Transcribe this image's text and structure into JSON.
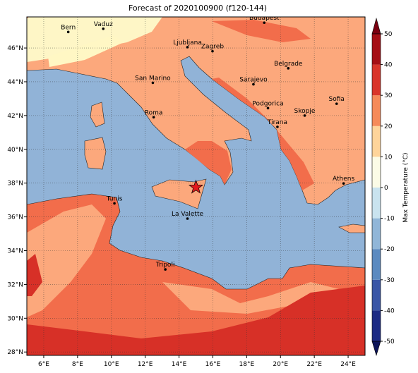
{
  "title": "Forecast of 2020100900 (f120-144)",
  "map": {
    "xlim": [
      5,
      25
    ],
    "ylim": [
      27.8,
      47.84
    ],
    "xticks": [
      {
        "value": 6,
        "label": "6°E"
      },
      {
        "value": 8,
        "label": "8°E"
      },
      {
        "value": 10,
        "label": "10°E"
      },
      {
        "value": 12,
        "label": "12°E"
      },
      {
        "value": 14,
        "label": "14°E"
      },
      {
        "value": 16,
        "label": "16°E"
      },
      {
        "value": 18,
        "label": "18°E"
      },
      {
        "value": 20,
        "label": "20°E"
      },
      {
        "value": 22,
        "label": "22°E"
      },
      {
        "value": 24,
        "label": "24°E"
      }
    ],
    "yticks": [
      {
        "value": 28,
        "label": "28°N"
      },
      {
        "value": 30,
        "label": "30°N"
      },
      {
        "value": 32,
        "label": "32°N"
      },
      {
        "value": 34,
        "label": "34°N"
      },
      {
        "value": 36,
        "label": "36°N"
      },
      {
        "value": 38,
        "label": "38°N"
      },
      {
        "value": 40,
        "label": "40°N"
      },
      {
        "value": 42,
        "label": "42°N"
      },
      {
        "value": 44,
        "label": "44°N"
      },
      {
        "value": 46,
        "label": "46°N"
      }
    ],
    "grid": true,
    "cities": [
      {
        "name": "Bern",
        "lon": 7.45,
        "lat": 46.95
      },
      {
        "name": "Vaduz",
        "lon": 9.52,
        "lat": 47.14
      },
      {
        "name": "Budapest",
        "lon": 19.04,
        "lat": 47.5
      },
      {
        "name": "Ljubljana",
        "lon": 14.5,
        "lat": 46.05
      },
      {
        "name": "Zagreb",
        "lon": 15.98,
        "lat": 45.81
      },
      {
        "name": "San Marino",
        "lon": 12.45,
        "lat": 43.94
      },
      {
        "name": "Belgrade",
        "lon": 20.46,
        "lat": 44.8
      },
      {
        "name": "Sarajevo",
        "lon": 18.4,
        "lat": 43.85
      },
      {
        "name": "Roma",
        "lon": 12.5,
        "lat": 41.9
      },
      {
        "name": "Podgorica",
        "lon": 19.26,
        "lat": 42.44
      },
      {
        "name": "Skopje",
        "lon": 21.43,
        "lat": 42.0
      },
      {
        "name": "Sofia",
        "lon": 23.32,
        "lat": 42.7
      },
      {
        "name": "Tirana",
        "lon": 19.82,
        "lat": 41.33
      },
      {
        "name": "Athens",
        "lon": 23.73,
        "lat": 37.98
      },
      {
        "name": "Tunis",
        "lon": 10.18,
        "lat": 36.8
      },
      {
        "name": "La Valette",
        "lon": 14.5,
        "lat": 35.9
      },
      {
        "name": "Tripoli",
        "lon": 13.19,
        "lat": 32.89
      }
    ],
    "marker": {
      "lon": 15.0,
      "lat": 37.75,
      "color": "#e31a1c"
    }
  },
  "colorbar": {
    "label": "Max Temperature (°C)",
    "lim": [
      -50,
      50
    ],
    "ticks": [
      -50,
      -40,
      -30,
      -20,
      -10,
      0,
      10,
      20,
      30,
      40,
      50
    ],
    "colors": [
      "#1c2a84",
      "#3a56a6",
      "#5b8ac0",
      "#91b6d8",
      "#c9e3ef",
      "#fbfbe6",
      "#fed49a",
      "#f58a59",
      "#d9352a",
      "#a50f15"
    ],
    "under": "#0c1459",
    "over": "#7a0010"
  }
}
